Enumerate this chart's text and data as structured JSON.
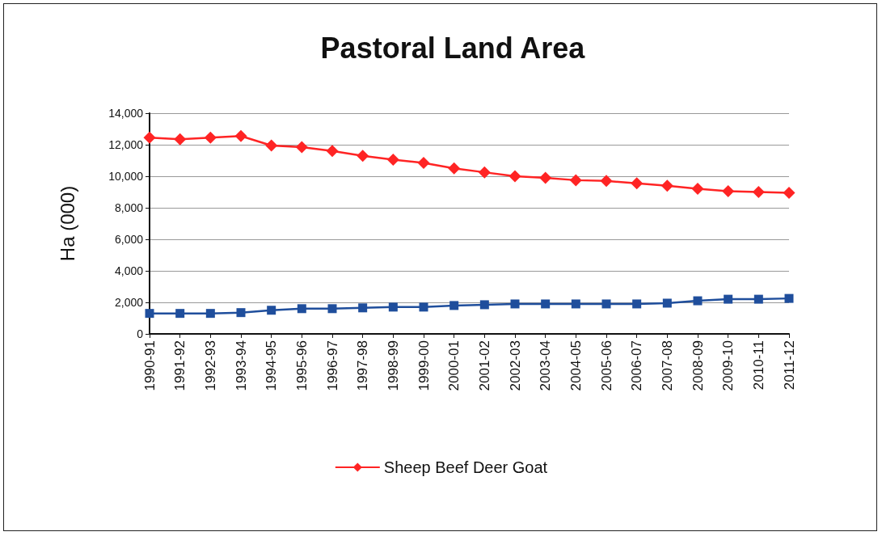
{
  "chart_data": {
    "type": "line",
    "title": "Pastoral Land Area",
    "ylabel": "Ha (000)",
    "categories": [
      "1990-91",
      "1991-92",
      "1992-93",
      "1993-94",
      "1994-95",
      "1995-96",
      "1996-97",
      "1997-98",
      "1998-99",
      "1999-00",
      "2000-01",
      "2001-02",
      "2002-03",
      "2003-04",
      "2004-05",
      "2005-06",
      "2006-07",
      "2007-08",
      "2008-09",
      "2009-10",
      "2010-11",
      "2011-12"
    ],
    "series": [
      {
        "name": "Sheep Beef Deer Goat",
        "color": "#ff2424",
        "marker": "diamond",
        "values": [
          12450,
          12350,
          12450,
          12550,
          11950,
          11850,
          11600,
          11300,
          11050,
          10850,
          10500,
          10250,
          10000,
          9900,
          9750,
          9700,
          9550,
          9400,
          9200,
          9050,
          9000,
          8950
        ]
      },
      {
        "color": "#1f4e9c",
        "marker": "square",
        "values": [
          1300,
          1300,
          1300,
          1350,
          1500,
          1600,
          1600,
          1650,
          1700,
          1700,
          1800,
          1850,
          1900,
          1900,
          1900,
          1900,
          1900,
          1950,
          2100,
          2200,
          2200,
          2250
        ]
      }
    ],
    "ylim": [
      0,
      14000
    ],
    "yticks": [
      0,
      {
        "value": 2000,
        "label": "2,000"
      },
      {
        "value": 4000,
        "label": "4,000"
      },
      {
        "value": 6000,
        "label": "6,000"
      },
      {
        "value": 8000,
        "label": "8,000"
      },
      {
        "value": 10000,
        "label": "10,000"
      },
      {
        "value": 12000,
        "label": "12,000"
      },
      {
        "value": 14000,
        "label": "14,000"
      }
    ],
    "grid": "y",
    "legend": "bottom"
  }
}
